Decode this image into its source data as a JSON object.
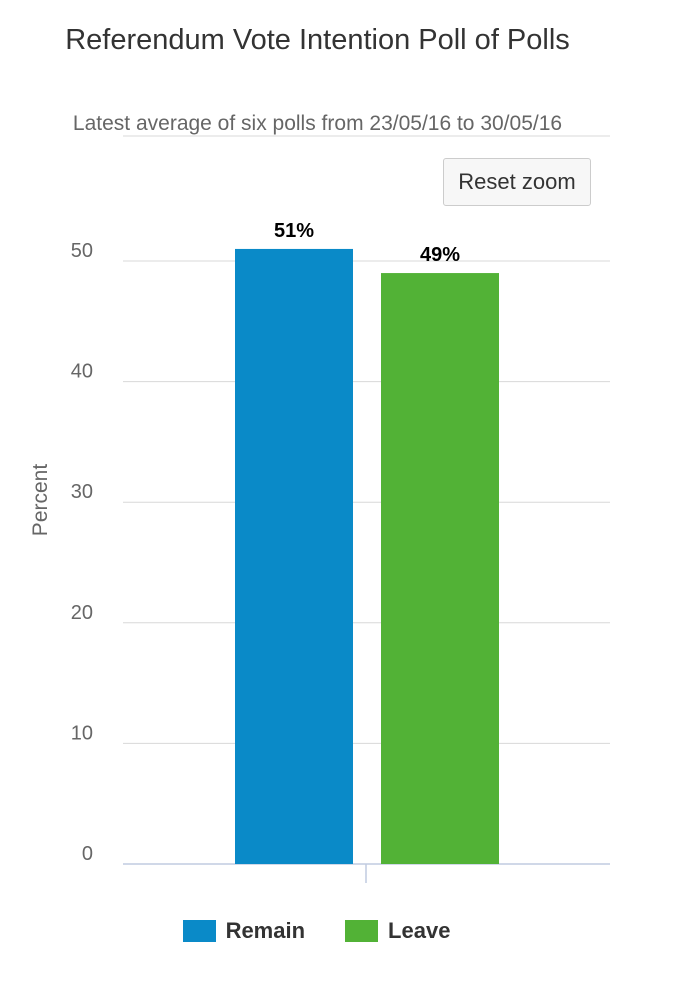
{
  "chart_data": {
    "type": "bar",
    "title": "Referendum Vote Intention Poll of Polls",
    "subtitle": "Latest average of six polls from 23/05/16 to 30/05/16",
    "xlabel": "",
    "ylabel": "Percent",
    "ylim": [
      0,
      55
    ],
    "yticks": [
      0,
      10,
      20,
      30,
      40,
      50
    ],
    "grid": true,
    "legend_position": "bottom",
    "series": [
      {
        "name": "Remain",
        "value": 51,
        "label": "51%",
        "color": "#0a8ac8"
      },
      {
        "name": "Leave",
        "value": 49,
        "label": "49%",
        "color": "#52b236"
      }
    ]
  },
  "controls": {
    "reset_zoom_label": "Reset zoom"
  }
}
